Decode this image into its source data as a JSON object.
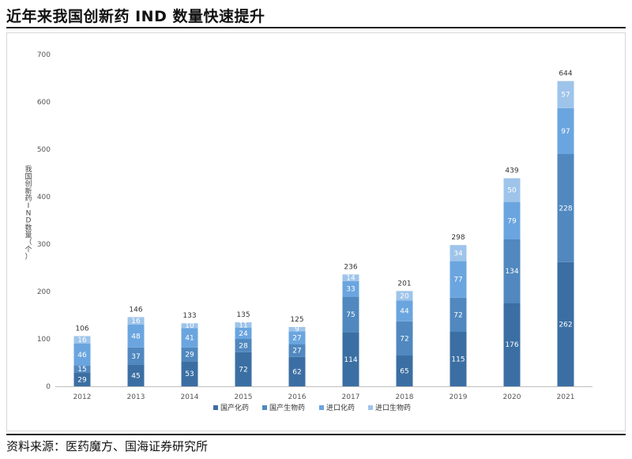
{
  "page": {
    "title": "近年来我国创新药 IND 数量快速提升",
    "source": "资料来源：医药魔方、国海证券研究所"
  },
  "chart_data": {
    "type": "bar",
    "stacked": true,
    "categories": [
      "2012",
      "2013",
      "2014",
      "2015",
      "2016",
      "2017",
      "2018",
      "2019",
      "2020",
      "2021"
    ],
    "series": [
      {
        "name": "国产化药",
        "color": "#3b6fa3",
        "values": [
          29,
          45,
          53,
          72,
          62,
          114,
          65,
          115,
          176,
          262
        ]
      },
      {
        "name": "国产生物药",
        "color": "#5088bf",
        "values": [
          15,
          37,
          29,
          28,
          27,
          75,
          72,
          72,
          134,
          228
        ]
      },
      {
        "name": "进口化药",
        "color": "#6aa5df",
        "values": [
          46,
          48,
          41,
          24,
          27,
          33,
          44,
          77,
          79,
          97
        ]
      },
      {
        "name": "进口生物药",
        "color": "#9ec4ea",
        "values": [
          16,
          16,
          10,
          11,
          9,
          14,
          20,
          34,
          50,
          57
        ]
      }
    ],
    "totals": [
      106,
      146,
      133,
      135,
      125,
      236,
      201,
      298,
      439,
      644
    ],
    "ylabel": "我国创新药IND数量（个）",
    "ylim": [
      0,
      700
    ],
    "yticks": [
      0,
      100,
      200,
      300,
      400,
      500,
      600,
      700
    ],
    "grid": false,
    "legend": "bottom"
  }
}
